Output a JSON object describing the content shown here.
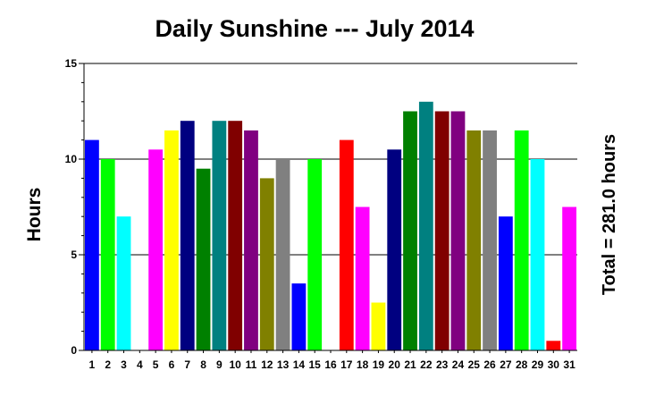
{
  "chart_data": {
    "type": "bar",
    "title": "Daily Sunshine --- July 2014",
    "ylabel": "Hours",
    "xlabel": "",
    "right_label": "Total = 281.0 hours",
    "ylim": [
      0,
      15
    ],
    "yticks": [
      "0",
      "5",
      "10",
      "15"
    ],
    "grid": "horizontal at 5, 10, 15",
    "categories": [
      "1",
      "2",
      "3",
      "4",
      "5",
      "6",
      "7",
      "8",
      "9",
      "10",
      "11",
      "12",
      "13",
      "14",
      "15",
      "16",
      "17",
      "18",
      "19",
      "20",
      "21",
      "22",
      "23",
      "24",
      "25",
      "26",
      "27",
      "28",
      "29",
      "30",
      "31"
    ],
    "values": [
      11,
      10,
      7,
      0,
      10.5,
      11.5,
      12,
      9.5,
      12,
      12,
      11.5,
      9,
      10,
      3.5,
      10,
      0,
      11,
      7.5,
      2.5,
      10.5,
      12.5,
      13,
      12.5,
      12.5,
      11.5,
      11.5,
      7,
      11.5,
      10,
      0.5,
      7.5
    ],
    "colors": [
      "#0000ff",
      "#00ff00",
      "#00ffff",
      "#ff0000",
      "#ff00ff",
      "#ffff00",
      "#000080",
      "#008000",
      "#008080",
      "#800000",
      "#800080",
      "#808000",
      "#808080",
      "#0000ff",
      "#00ff00",
      "#00ffff",
      "#ff0000",
      "#ff00ff",
      "#ffff00",
      "#000080",
      "#008000",
      "#008080",
      "#800000",
      "#800080",
      "#808000",
      "#808080",
      "#0000ff",
      "#00ff00",
      "#00ffff",
      "#ff0000",
      "#ff00ff"
    ]
  }
}
